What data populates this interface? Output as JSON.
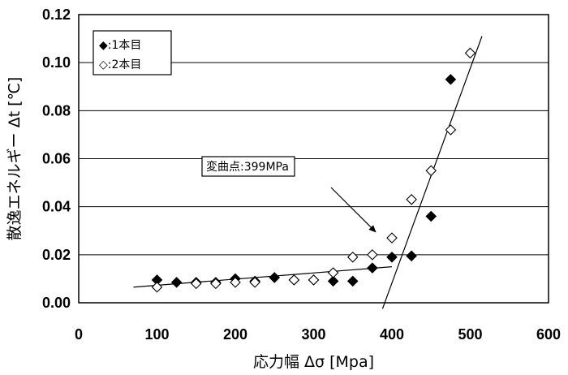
{
  "chart_data": {
    "type": "scatter",
    "xlabel": "応力幅 Δσ [Mpa]",
    "ylabel": "散逸エネルギー Δt [℃]",
    "xlim": [
      0,
      600
    ],
    "ylim": [
      0,
      0.12
    ],
    "x_ticks": [
      "0",
      "100",
      "200",
      "300",
      "400",
      "500",
      "600"
    ],
    "y_ticks": [
      "0.00",
      "0.02",
      "0.04",
      "0.06",
      "0.08",
      "0.10",
      "0.12"
    ],
    "x_tick_values": [
      0,
      100,
      200,
      300,
      400,
      500,
      600
    ],
    "y_tick_values": [
      0,
      0.02,
      0.04,
      0.06,
      0.08,
      0.1,
      0.12
    ],
    "grid": "horizontal",
    "legend_position": "top-left",
    "series": [
      {
        "name": "◆:1本目",
        "marker": "filled-diamond",
        "color": "#000000",
        "x": [
          100,
          125,
          150,
          175,
          200,
          225,
          250,
          275,
          300,
          325,
          350,
          375,
          400,
          425,
          450,
          475
        ],
        "y": [
          0.0095,
          0.0085,
          0.0085,
          0.0085,
          0.01,
          0.009,
          0.0105,
          0.0095,
          0.0095,
          0.009,
          0.009,
          0.0145,
          0.019,
          0.0195,
          0.036,
          0.093
        ]
      },
      {
        "name": "◇:2本目",
        "marker": "open-diamond",
        "color": "#000000",
        "x": [
          100,
          150,
          175,
          200,
          225,
          275,
          300,
          325,
          350,
          375,
          400,
          425,
          450,
          475,
          500
        ],
        "y": [
          0.0065,
          0.008,
          0.008,
          0.0085,
          0.0085,
          0.0095,
          0.0095,
          0.0125,
          0.019,
          0.02,
          0.027,
          0.043,
          0.055,
          0.072,
          0.104
        ]
      }
    ],
    "trendlines": [
      {
        "x": [
          70,
          400
        ],
        "y": [
          0.0065,
          0.015
        ]
      },
      {
        "x": [
          388,
          515
        ],
        "y": [
          -0.0025,
          0.111
        ]
      }
    ],
    "annotation": {
      "text": "変曲点:399MPa",
      "arrow_target": {
        "x": 375,
        "y": 0.0295
      }
    }
  }
}
